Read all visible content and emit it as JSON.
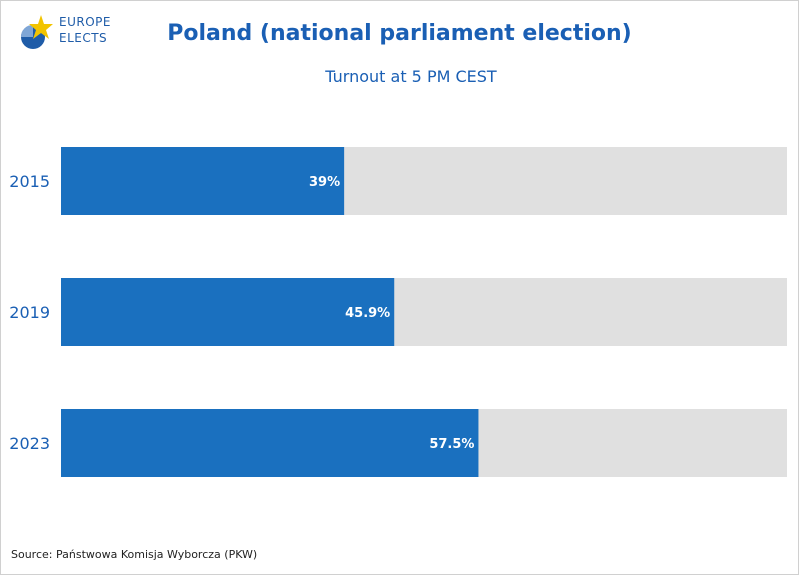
{
  "logo": {
    "line1": "EUROPE",
    "line2": "ELECTS"
  },
  "title": "Poland (national parliament election)",
  "subtitle": "Turnout at 5 PM CEST",
  "source": "Source: Państwowa Komisja Wyborcza (PKW)",
  "colors": {
    "bar": "#1a70bf",
    "track": "#e0e0e0",
    "text": "#1a5fb4",
    "label": "#ffffff"
  },
  "chart_data": {
    "type": "bar",
    "orientation": "horizontal",
    "title": "Poland (national parliament election)",
    "subtitle": "Turnout at 5 PM CEST",
    "categories": [
      "2015",
      "2019",
      "2023"
    ],
    "values": [
      39,
      45.9,
      57.5
    ],
    "data_labels": [
      "39%",
      "45.9%",
      "57.5%"
    ],
    "xlim": [
      0,
      100
    ],
    "grid": false
  }
}
